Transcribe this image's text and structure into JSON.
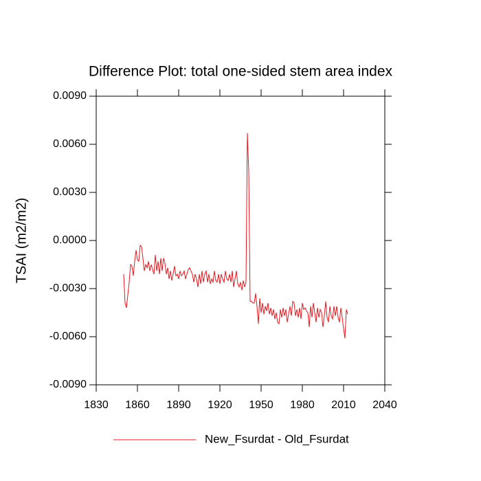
{
  "chart_data": {
    "type": "line",
    "title": "Difference Plot: total one-sided stem area index",
    "y_label": "TSAI  (m2/m2)",
    "x": [
      1850,
      1851,
      1852,
      1853,
      1854,
      1855,
      1856,
      1857,
      1858,
      1859,
      1860,
      1861,
      1862,
      1863,
      1864,
      1865,
      1866,
      1867,
      1868,
      1869,
      1870,
      1871,
      1872,
      1873,
      1874,
      1875,
      1876,
      1877,
      1878,
      1879,
      1880,
      1881,
      1882,
      1883,
      1884,
      1885,
      1886,
      1887,
      1888,
      1889,
      1890,
      1891,
      1892,
      1893,
      1894,
      1895,
      1896,
      1897,
      1898,
      1899,
      1900,
      1901,
      1902,
      1903,
      1904,
      1905,
      1906,
      1907,
      1908,
      1909,
      1910,
      1911,
      1912,
      1913,
      1914,
      1915,
      1916,
      1917,
      1918,
      1919,
      1920,
      1921,
      1922,
      1923,
      1924,
      1925,
      1926,
      1927,
      1928,
      1929,
      1930,
      1931,
      1932,
      1933,
      1934,
      1935,
      1936,
      1937,
      1938,
      1939,
      1940,
      1941,
      1942,
      1943,
      1944,
      1945,
      1946,
      1947,
      1948,
      1949,
      1950,
      1951,
      1952,
      1953,
      1954,
      1955,
      1956,
      1957,
      1958,
      1959,
      1960,
      1961,
      1962,
      1963,
      1964,
      1965,
      1966,
      1967,
      1968,
      1969,
      1970,
      1971,
      1972,
      1973,
      1974,
      1975,
      1976,
      1977,
      1978,
      1979,
      1980,
      1981,
      1982,
      1983,
      1984,
      1985,
      1986,
      1987,
      1988,
      1989,
      1990,
      1991,
      1992,
      1993,
      1994,
      1995,
      1996,
      1997,
      1998,
      1999,
      2000,
      2001,
      2002,
      2003,
      2004,
      2005,
      2006,
      2007,
      2008,
      2009,
      2010,
      2011,
      2012,
      2013
    ],
    "series": [
      {
        "name": "New_Fsurdat - Old_Fsurdat",
        "color": "#e8141c",
        "values": [
          -0.0021,
          -0.0039,
          -0.0042,
          -0.0034,
          -0.0026,
          -0.0015,
          -0.0016,
          -0.0022,
          -0.0013,
          -0.0006,
          -0.0012,
          -0.0013,
          -0.0003,
          -0.0004,
          -0.0011,
          -0.0019,
          -0.0015,
          -0.0017,
          -0.0013,
          -0.0019,
          -0.0015,
          -0.0018,
          -0.0021,
          -0.0009,
          -0.0019,
          -0.0013,
          -0.0021,
          -0.0011,
          -0.0019,
          -0.0011,
          -0.0014,
          -0.0021,
          -0.0017,
          -0.0024,
          -0.0019,
          -0.0025,
          -0.0021,
          -0.0016,
          -0.0022,
          -0.0021,
          -0.0024,
          -0.0019,
          -0.0022,
          -0.0021,
          -0.0019,
          -0.0024,
          -0.0021,
          -0.0018,
          -0.0017,
          -0.0019,
          -0.0021,
          -0.0026,
          -0.0021,
          -0.0024,
          -0.0029,
          -0.0021,
          -0.0027,
          -0.0019,
          -0.0026,
          -0.0021,
          -0.0019,
          -0.0026,
          -0.0021,
          -0.0027,
          -0.0024,
          -0.0026,
          -0.0019,
          -0.0025,
          -0.0026,
          -0.0021,
          -0.0027,
          -0.0021,
          -0.0024,
          -0.0026,
          -0.0019,
          -0.0024,
          -0.0025,
          -0.0021,
          -0.0026,
          -0.0019,
          -0.0029,
          -0.0024,
          -0.0019,
          -0.0027,
          -0.0029,
          -0.0026,
          -0.0031,
          -0.0025,
          -0.0029,
          -0.0026,
          0.0067,
          0.0043,
          -0.0038,
          -0.0038,
          -0.0039,
          -0.0039,
          -0.0033,
          -0.0041,
          -0.0052,
          -0.0036,
          -0.0045,
          -0.0039,
          -0.0046,
          -0.0041,
          -0.0044,
          -0.0039,
          -0.0046,
          -0.0042,
          -0.0047,
          -0.0043,
          -0.0049,
          -0.0045,
          -0.0051,
          -0.0052,
          -0.0043,
          -0.0048,
          -0.0042,
          -0.0047,
          -0.0043,
          -0.0051,
          -0.0046,
          -0.0041,
          -0.0047,
          -0.0038,
          -0.0039,
          -0.0047,
          -0.0043,
          -0.0048,
          -0.0042,
          -0.0049,
          -0.0039,
          -0.0043,
          -0.0042,
          -0.0044,
          -0.0045,
          -0.0054,
          -0.0041,
          -0.0048,
          -0.0039,
          -0.0045,
          -0.0051,
          -0.0042,
          -0.0048,
          -0.0043,
          -0.0045,
          -0.0054,
          -0.0047,
          -0.0038,
          -0.0048,
          -0.0051,
          -0.0041,
          -0.0047,
          -0.0049,
          -0.0041,
          -0.0047,
          -0.0041,
          -0.0048,
          -0.0051,
          -0.0042,
          -0.0048,
          -0.0055,
          -0.0061,
          -0.0043,
          -0.0046
        ]
      }
    ],
    "xlim": [
      1830,
      2040
    ],
    "xticks": [
      1830,
      1860,
      1890,
      1920,
      1950,
      1980,
      2010,
      2040
    ],
    "ylim": [
      -0.009,
      0.009
    ],
    "yticks": [
      {
        "value": -0.009,
        "label": "-0.0090"
      },
      {
        "value": -0.006,
        "label": "-0.0060"
      },
      {
        "value": -0.003,
        "label": "-0.0030"
      },
      {
        "value": 0,
        "label": "0.0000"
      },
      {
        "value": 0.003,
        "label": "0.0030"
      },
      {
        "value": 0.006,
        "label": "0.0060"
      },
      {
        "value": 0.009,
        "label": "0.0090"
      }
    ],
    "grid": false,
    "legend": "bottom"
  }
}
